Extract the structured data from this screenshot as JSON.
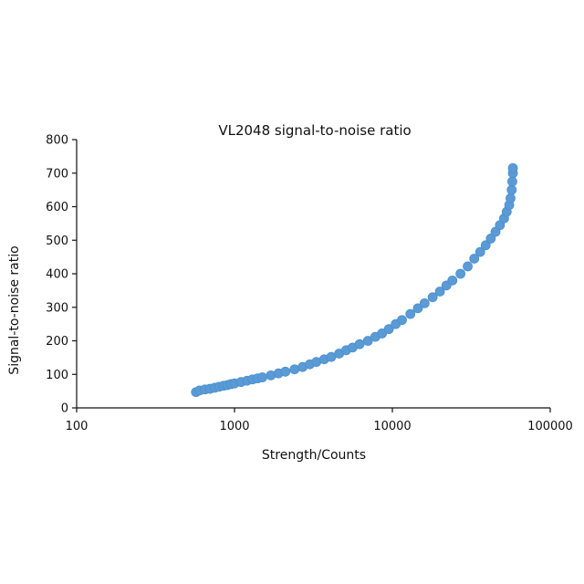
{
  "chart_data": {
    "type": "scatter",
    "title": "VL2048 signal-to-noise ratio",
    "xlabel": "Strength/Counts",
    "ylabel": "Signal-to-noise ratio",
    "x_scale": "log",
    "xlim": [
      100,
      100000
    ],
    "ylim": [
      0,
      800
    ],
    "x_ticks": [
      100,
      1000,
      10000,
      100000
    ],
    "x_tick_labels": [
      "100",
      "1000",
      "10000",
      "100000"
    ],
    "y_ticks": [
      0,
      100,
      200,
      300,
      400,
      500,
      600,
      700,
      800
    ],
    "y_tick_labels": [
      "0",
      "100",
      "200",
      "300",
      "400",
      "500",
      "600",
      "700",
      "800"
    ],
    "grid": false,
    "legend": "none",
    "series": [
      {
        "color": "#5b9bd5",
        "points": [
          [
            570,
            47
          ],
          [
            600,
            52
          ],
          [
            650,
            55
          ],
          [
            700,
            57
          ],
          [
            750,
            60
          ],
          [
            800,
            63
          ],
          [
            850,
            66
          ],
          [
            900,
            68
          ],
          [
            950,
            71
          ],
          [
            1000,
            73
          ],
          [
            1100,
            77
          ],
          [
            1200,
            81
          ],
          [
            1300,
            85
          ],
          [
            1400,
            88
          ],
          [
            1500,
            91
          ],
          [
            1700,
            97
          ],
          [
            1900,
            103
          ],
          [
            2100,
            108
          ],
          [
            2400,
            115
          ],
          [
            2700,
            122
          ],
          [
            3000,
            130
          ],
          [
            3300,
            137
          ],
          [
            3700,
            145
          ],
          [
            4100,
            152
          ],
          [
            4600,
            162
          ],
          [
            5100,
            172
          ],
          [
            5600,
            180
          ],
          [
            6200,
            190
          ],
          [
            7000,
            200
          ],
          [
            7800,
            212
          ],
          [
            8600,
            222
          ],
          [
            9500,
            235
          ],
          [
            10500,
            250
          ],
          [
            11500,
            262
          ],
          [
            13000,
            280
          ],
          [
            14500,
            297
          ],
          [
            16000,
            312
          ],
          [
            18000,
            330
          ],
          [
            20000,
            347
          ],
          [
            22000,
            365
          ],
          [
            24000,
            380
          ],
          [
            27000,
            400
          ],
          [
            30000,
            422
          ],
          [
            33000,
            445
          ],
          [
            36000,
            465
          ],
          [
            39000,
            485
          ],
          [
            42000,
            505
          ],
          [
            45000,
            525
          ],
          [
            48000,
            545
          ],
          [
            51000,
            565
          ],
          [
            53000,
            585
          ],
          [
            55000,
            605
          ],
          [
            56000,
            625
          ],
          [
            57000,
            650
          ],
          [
            57500,
            675
          ],
          [
            58000,
            700
          ],
          [
            58000,
            715
          ]
        ]
      }
    ]
  }
}
